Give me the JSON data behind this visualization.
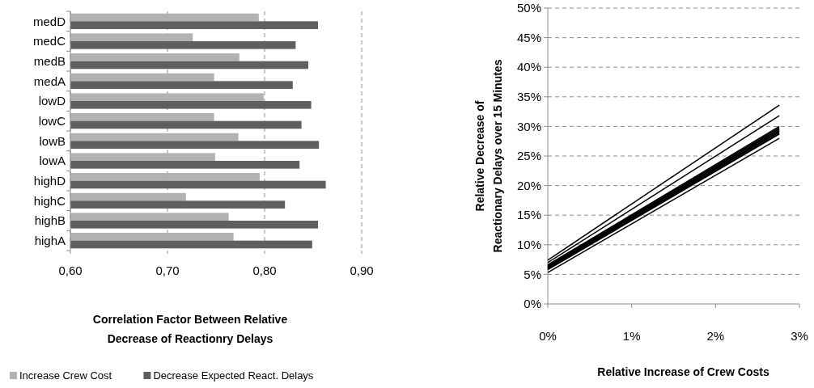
{
  "chart_data": [
    {
      "type": "bar",
      "orientation": "horizontal",
      "categories": [
        "medD",
        "medC",
        "medB",
        "medA",
        "lowD",
        "lowC",
        "lowB",
        "lowA",
        "highD",
        "highC",
        "highB",
        "highA"
      ],
      "series": [
        {
          "name": "Increase Crew Cost",
          "color": "#b2b2b2",
          "values": [
            0.794,
            0.726,
            0.774,
            0.748,
            0.799,
            0.748,
            0.773,
            0.749,
            0.795,
            0.719,
            0.763,
            0.768
          ]
        },
        {
          "name": "Decrease Expected React. Delays",
          "color": "#5f5f5f",
          "values": [
            0.855,
            0.832,
            0.845,
            0.829,
            0.848,
            0.838,
            0.856,
            0.836,
            0.863,
            0.821,
            0.855,
            0.849
          ]
        }
      ],
      "xlim": [
        0.6,
        0.9
      ],
      "xticks": [
        {
          "value": 0.6,
          "label": "0,60"
        },
        {
          "value": 0.7,
          "label": "0,70"
        },
        {
          "value": 0.8,
          "label": "0,80"
        },
        {
          "value": 0.9,
          "label": "0,90"
        }
      ],
      "xlabel": "Correlation Factor Between Relative\nDecrease of Reactionry Delays",
      "grid": "x",
      "legend": "bottom"
    },
    {
      "type": "line",
      "xlabel": "Relative Increase of Crew Costs",
      "ylabel": "Relative Decrease of\nReactionary Delays over 15 Minutes",
      "xlim": [
        0,
        3
      ],
      "xticks": [
        {
          "value": 0,
          "label": "0%"
        },
        {
          "value": 1,
          "label": "1%"
        },
        {
          "value": 2,
          "label": "2%"
        },
        {
          "value": 3,
          "label": "3%"
        }
      ],
      "ylim": [
        0,
        50
      ],
      "yticks": [
        {
          "value": 0,
          "label": "0%"
        },
        {
          "value": 5,
          "label": "5%"
        },
        {
          "value": 10,
          "label": "10%"
        },
        {
          "value": 15,
          "label": "15%"
        },
        {
          "value": 20,
          "label": "20%"
        },
        {
          "value": 25,
          "label": "25%"
        },
        {
          "value": 30,
          "label": "30%"
        },
        {
          "value": 35,
          "label": "35%"
        },
        {
          "value": 40,
          "label": "40%"
        },
        {
          "value": 45,
          "label": "45%"
        },
        {
          "value": 50,
          "label": "50%"
        }
      ],
      "grid": "y",
      "x": [
        0,
        2.76
      ],
      "series": [
        {
          "color": "#000000",
          "values": [
            7.4,
            33.6
          ]
        },
        {
          "color": "#000000",
          "values": [
            7.0,
            31.8
          ]
        },
        {
          "color": "#000000",
          "values": [
            6.6,
            30.0
          ]
        },
        {
          "color": "#000000",
          "values": [
            6.5,
            29.8
          ]
        },
        {
          "color": "#000000",
          "values": [
            6.4,
            29.6
          ]
        },
        {
          "color": "#000000",
          "values": [
            6.3,
            29.5
          ]
        },
        {
          "color": "#000000",
          "values": [
            6.2,
            29.3
          ]
        },
        {
          "color": "#000000",
          "values": [
            6.1,
            29.2
          ]
        },
        {
          "color": "#000000",
          "values": [
            6.0,
            29.0
          ]
        },
        {
          "color": "#000000",
          "values": [
            5.9,
            28.8
          ]
        },
        {
          "color": "#000000",
          "values": [
            5.8,
            28.7
          ]
        },
        {
          "color": "#000000",
          "values": [
            5.3,
            28.0
          ]
        }
      ]
    }
  ]
}
